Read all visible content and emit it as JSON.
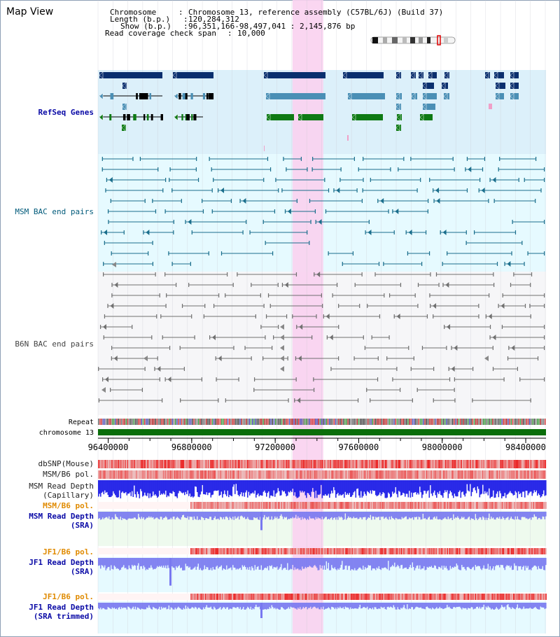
{
  "title": "Map View",
  "header": {
    "chromosome_label": "Chromosome",
    "chromosome_value": "Chromosome 13, reference assembly (C57BL/6J) (Build 37)",
    "length_label": "Length (b.p.)",
    "length_value": "120,284,312",
    "show_label": "Show (b.p.)",
    "show_value": "96,351,166-98,497,041 : 2,145,876 bp",
    "coverage_label": "Read coverage check span",
    "coverage_value": "10,000"
  },
  "tracks": {
    "refseq": "RefSeq Genes",
    "msm_bac": "MSM BAC end pairs",
    "b6n_bac": "B6N BAC end pairs",
    "repeat": "Repeat",
    "chromosome": "chromosome 13",
    "dbsnp": "dbSNP(Mouse)",
    "msm_b6_pol": "MSM/B6 pol.",
    "msm_depth_cap_1": "MSM Read Depth",
    "msm_depth_cap_2": "(Capillary)",
    "msm_b6_pol2": "MSM/B6 pol.",
    "msm_depth_sra_1": "MSM Read Depth",
    "msm_depth_sra_2": "(SRA)",
    "jf1_pol": "JF1/B6 pol.",
    "jf1_depth_1": "JF1 Read Depth",
    "jf1_depth_2": "(SRA)",
    "jf1_pol2": "JF1/B6 pol.",
    "jf1_trim_1": "JF1 Read Depth",
    "jf1_trim_2": "(SRA trimmed)"
  },
  "axis_ticks": [
    "96400000",
    "96800000",
    "97200000",
    "97600000",
    "98000000",
    "98400000"
  ],
  "axis_tick_values": [
    96400000,
    96800000,
    97200000,
    97600000,
    98000000,
    98400000
  ],
  "view_range": [
    96351166,
    98497041
  ],
  "highlight_range": [
    97283000,
    97430000
  ],
  "colors": {
    "refseq_bg": "#dcf0fa",
    "msm_bg": "#e6faff",
    "b6n_bg": "#f5f5f8",
    "highlight": "#fad2f0",
    "gene_navy": "#0a2f6e",
    "gene_steel": "#4a8fb5",
    "gene_green": "#0e7a14",
    "msm_line": "#1a6e8c",
    "b6n_line": "#707070",
    "chrom_bar": "#0a6e0a",
    "depth_blue": "#1414e6",
    "depth_violet": "#7878f0",
    "pol_red": "#e03232"
  }
}
